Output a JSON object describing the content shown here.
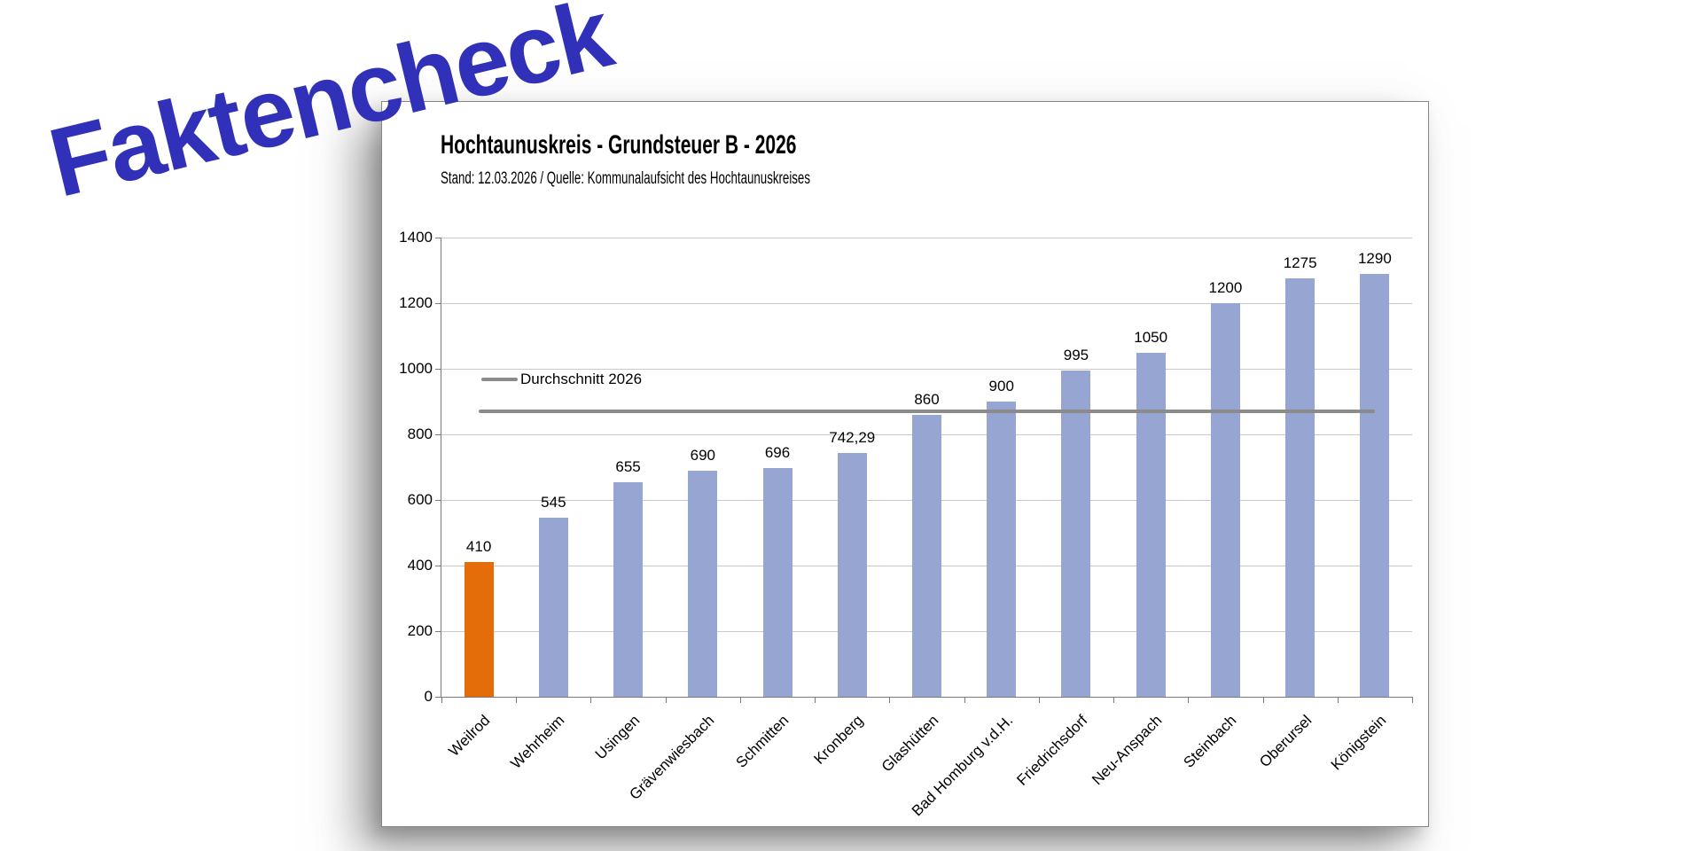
{
  "stamp": {
    "text": "Faktencheck",
    "color": "#3031B8"
  },
  "panel": {
    "border_color": "#858585",
    "background": "#FFFFFF"
  },
  "chart_data": {
    "type": "bar",
    "title": "Hochtaunuskreis - Grundsteuer B - 2026",
    "subtitle": "Stand: 12.03.2026 / Quelle: Kommunalaufsicht des Hochtaunuskreises",
    "categories": [
      "Weilrod",
      "Wehrheim",
      "Usingen",
      "Grävenwiesbach",
      "Schmitten",
      "Kronberg",
      "Glashütten",
      "Bad Homburg v.d.H.",
      "Friedrichsdorf",
      "Neu-Anspach",
      "Steinbach",
      "Oberursel",
      "Königstein"
    ],
    "values": [
      410,
      545,
      655,
      690,
      696,
      742.29,
      860,
      900,
      995,
      1050,
      1200,
      1275,
      1290
    ],
    "value_labels": [
      "410",
      "545",
      "655",
      "690",
      "696",
      "742,29",
      "860",
      "900",
      "995",
      "1050",
      "1200",
      "1275",
      "1290"
    ],
    "highlight_index": 0,
    "average_line": {
      "label": "Durchschnitt 2026",
      "value": 869.87
    },
    "y_axis": {
      "min": 0,
      "max": 1400,
      "step": 200,
      "tick_labels": [
        "0",
        "200",
        "400",
        "600",
        "800",
        "1000",
        "1200",
        "1400"
      ]
    },
    "xlabel": "",
    "ylabel": "",
    "grid": true,
    "legend_position": "inside-top-left",
    "colors": {
      "bar": "#96A5D1",
      "bar_highlight": "#E46C09",
      "average_line": "#8B8B8B",
      "grid": "#C9C9C9",
      "axis": "#7A7A7A"
    }
  }
}
